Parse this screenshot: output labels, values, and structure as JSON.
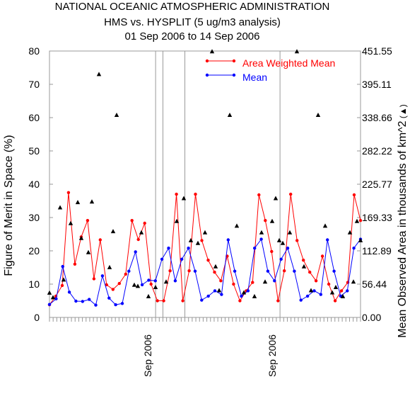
{
  "chart_data": {
    "type": "line",
    "title_lines": [
      "NATIONAL OCEANIC ATMOSPHERIC ADMINISTRATION",
      "HMS vs. HYSPLIT (5 ug/m3 analysis)",
      "01 Sep 2006 to 14 Sep 2006"
    ],
    "ylabel_left": "Figure of Merit in Space (%)",
    "ylabel_right": "Mean Observed Area in thousands of km^2",
    "ylabel_right_marker": "▲",
    "yticks_left": [
      "0",
      "10",
      "20",
      "30",
      "40",
      "50",
      "60",
      "70",
      "80"
    ],
    "yticks_right": [
      "0.00",
      "56.44",
      "112.89",
      "169.33",
      "225.77",
      "282.22",
      "338.66",
      "395.11",
      "451.55"
    ],
    "ylim": [
      0,
      80
    ],
    "ylim_right": [
      0,
      451.55
    ],
    "x_labels": [
      {
        "text": "Sep 2006",
        "at": 29
      },
      {
        "text": "Sep 2006",
        "at": 63
      }
    ],
    "vertical_lines_at": [
      29,
      31,
      37,
      63
    ],
    "x_count": 86,
    "legend_position": "top-right",
    "colors": {
      "weighted": "#ff0000",
      "mean": "#0000ff",
      "area": "#000000",
      "grid": "#999999"
    },
    "series": [
      {
        "name": "Area Weighted Mean",
        "color": "#ff0000",
        "values": [
          3.8,
          6.4,
          9.6,
          37.5,
          16.0,
          24.2,
          29.1,
          11.6,
          23.3,
          9.8,
          8.4,
          10.2,
          13.0,
          29.1,
          23.4,
          28.3,
          10.0,
          5.0,
          5.0,
          14.0,
          37.0,
          5.0,
          14.0,
          37.0,
          23.1,
          17.2,
          13.6,
          11.0,
          18.4,
          10.0,
          5.0,
          8.0,
          10.5,
          36.8,
          29.1,
          19.8,
          5.0,
          14.0,
          37.0,
          23.1,
          17.2,
          13.6,
          11.0,
          18.4,
          10.0,
          5.0,
          8.0,
          10.5,
          36.8,
          29.1
        ]
      },
      {
        "name": "Mean",
        "color": "#0000ff",
        "values": [
          3.9,
          5.6,
          15.3,
          7.6,
          4.9,
          4.8,
          5.4,
          3.7,
          12.5,
          5.8,
          3.8,
          4.2,
          13.9,
          19.7,
          9.8,
          11.2,
          11.0,
          17.5,
          20.8,
          11.0,
          17.5,
          20.8,
          13.9,
          5.2,
          6.4,
          8.0,
          6.9,
          23.3,
          13.9,
          6.4,
          8.0,
          20.8,
          23.5,
          13.9,
          11.0,
          17.5,
          20.8,
          13.9,
          5.2,
          6.4,
          8.0,
          6.9,
          23.3,
          13.9,
          6.4,
          8.0,
          20.8,
          23.5
        ]
      },
      {
        "name": "Mean Observed Area",
        "axis": "right",
        "color": "#000000",
        "x": [
          0,
          1,
          3,
          4,
          6,
          8,
          9,
          11,
          12,
          14,
          17,
          18,
          19,
          24,
          25,
          26,
          28,
          30,
          33,
          36,
          38,
          40,
          42,
          44,
          46,
          47,
          48,
          51,
          53,
          55,
          58,
          60,
          61,
          63,
          64,
          65,
          66,
          68,
          70,
          72,
          74,
          76,
          78,
          80,
          81,
          83,
          85,
          86,
          87,
          88
        ],
        "values": [
          41.5,
          33.8,
          186.1,
          63.8,
          159.4,
          195.0,
          134.2,
          110.1,
          196.0,
          412.0,
          84.8,
          145.8,
          342.9,
          54.9,
          53.0,
          143.9,
          35.5,
          51.0,
          60.3,
          163.1,
          201.7,
          130.4,
          125.7,
          143.8,
          450.6,
          86.1,
          45.6,
          342.9,
          155.0,
          42.0,
          35.5,
          143.9,
          60.3,
          163.1,
          201.7,
          130.4,
          125.7,
          143.8,
          450.6,
          86.1,
          45.6,
          342.9,
          155.0,
          42.0,
          51.0,
          35.5,
          143.9,
          60.3,
          163.1,
          130.4
        ]
      }
    ]
  }
}
